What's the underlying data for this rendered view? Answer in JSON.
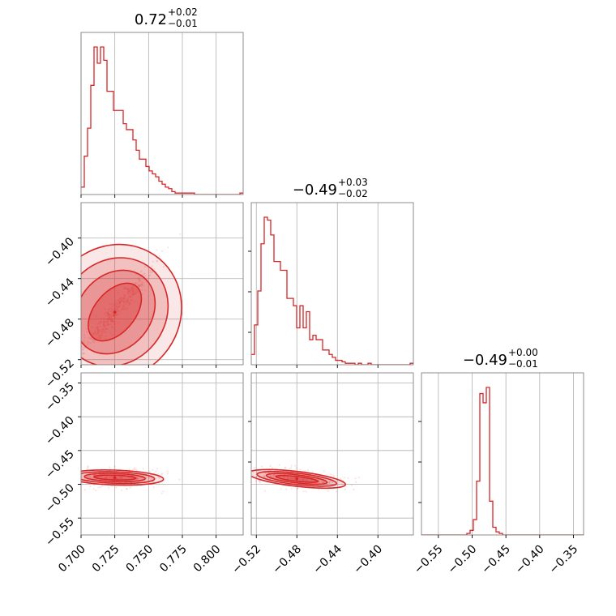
{
  "colors": {
    "main": "#d62728",
    "fill": "#f4b6b6",
    "grid": "#b0b0b0",
    "frame": "#808080"
  },
  "chart_data": {
    "type": "corner",
    "parameters": [
      {
        "title": {
          "median": "0.72",
          "plus": "+0.02",
          "minus": "−0.01"
        },
        "range": [
          0.7,
          0.82
        ],
        "ticks": [
          0.7,
          0.725,
          0.75,
          0.775,
          0.8
        ],
        "tick_labels": [
          "0.700",
          "0.725",
          "0.750",
          "0.775",
          "0.800"
        ],
        "hist": {
          "edges_start": 0.7,
          "bin_width": 0.0024,
          "counts": [
            5,
            26,
            45,
            74,
            100,
            89,
            100,
            91,
            70,
            70,
            57,
            57,
            57,
            48,
            44,
            44,
            37,
            30,
            24,
            24,
            19,
            16,
            14,
            12,
            9,
            7,
            5,
            4,
            2,
            1,
            1,
            1,
            1,
            1,
            1,
            0,
            0,
            0,
            0,
            0,
            0,
            0,
            0,
            0,
            0,
            0,
            0,
            0,
            0,
            1
          ]
        }
      },
      {
        "title": {
          "median": "−0.49",
          "plus": "+0.03",
          "minus": "−0.02"
        },
        "range": [
          -0.525,
          -0.365
        ],
        "ticks": [
          -0.52,
          -0.48,
          -0.44,
          -0.4
        ],
        "tick_labels": [
          "−0.52",
          "−0.48",
          "−0.44",
          "−0.40"
        ],
        "hist": {
          "edges_start": -0.525,
          "bin_width": 0.0032,
          "counts": [
            7,
            27,
            50,
            82,
            100,
            98,
            88,
            70,
            70,
            64,
            64,
            45,
            45,
            40,
            25,
            40,
            25,
            36,
            17,
            20,
            17,
            17,
            10,
            10,
            7,
            5,
            3,
            3,
            2,
            1,
            1,
            1,
            0,
            1,
            0,
            0,
            1,
            0,
            0,
            0,
            0,
            0,
            0,
            0,
            0,
            0,
            0,
            0,
            0,
            1
          ]
        }
      },
      {
        "title": {
          "median": "−0.49",
          "plus": "+0.00",
          "minus": "−0.01"
        },
        "range": [
          -0.575,
          -0.335
        ],
        "ticks": [
          -0.55,
          -0.5,
          -0.45,
          -0.4,
          -0.35
        ],
        "tick_labels": [
          "−0.55",
          "−0.50",
          "−0.45",
          "−0.40",
          "−0.35"
        ],
        "hist": {
          "edges_start": -0.575,
          "bin_width": 0.0048,
          "counts": [
            0,
            0,
            0,
            0,
            0,
            0,
            0,
            0,
            0,
            0,
            0,
            0,
            0,
            0,
            1,
            3,
            10,
            35,
            92,
            86,
            96,
            22,
            5,
            2,
            1,
            0,
            0,
            0,
            0,
            0,
            0,
            0,
            0,
            0,
            0,
            0,
            0,
            0,
            0,
            0,
            0,
            0,
            0,
            0,
            0,
            0,
            0,
            0,
            0,
            0
          ]
        }
      }
    ],
    "contours": [
      {
        "x_param": 0,
        "y_param": 1,
        "center": [
          0.725,
          -0.473
        ],
        "dir": [
          0.0275,
          0.0438
        ],
        "half_lengths": [
          1.2,
          0.98,
          0.78,
          0.58
        ],
        "half_widths": [
          0.064,
          0.05,
          0.036,
          0.02
        ],
        "scatter_sigma": [
          0.012,
          0.0035
        ]
      },
      {
        "x_param": 0,
        "y_param": 2,
        "center": [
          0.725,
          -0.49
        ],
        "dir": [
          0.03,
          -0.002
        ],
        "half_lengths": [
          1.2,
          0.98,
          0.75,
          0.52
        ],
        "half_widths": [
          0.011,
          0.0085,
          0.006,
          0.0035
        ],
        "scatter_sigma": [
          0.015,
          0.007
        ]
      },
      {
        "x_param": 1,
        "y_param": 2,
        "center": [
          -0.48,
          -0.492
        ],
        "dir": [
          0.04,
          -0.007
        ],
        "half_lengths": [
          1.2,
          0.98,
          0.75,
          0.52
        ],
        "half_widths": [
          0.011,
          0.0085,
          0.006,
          0.0035
        ],
        "scatter_sigma": [
          0.02,
          0.007
        ]
      }
    ]
  }
}
